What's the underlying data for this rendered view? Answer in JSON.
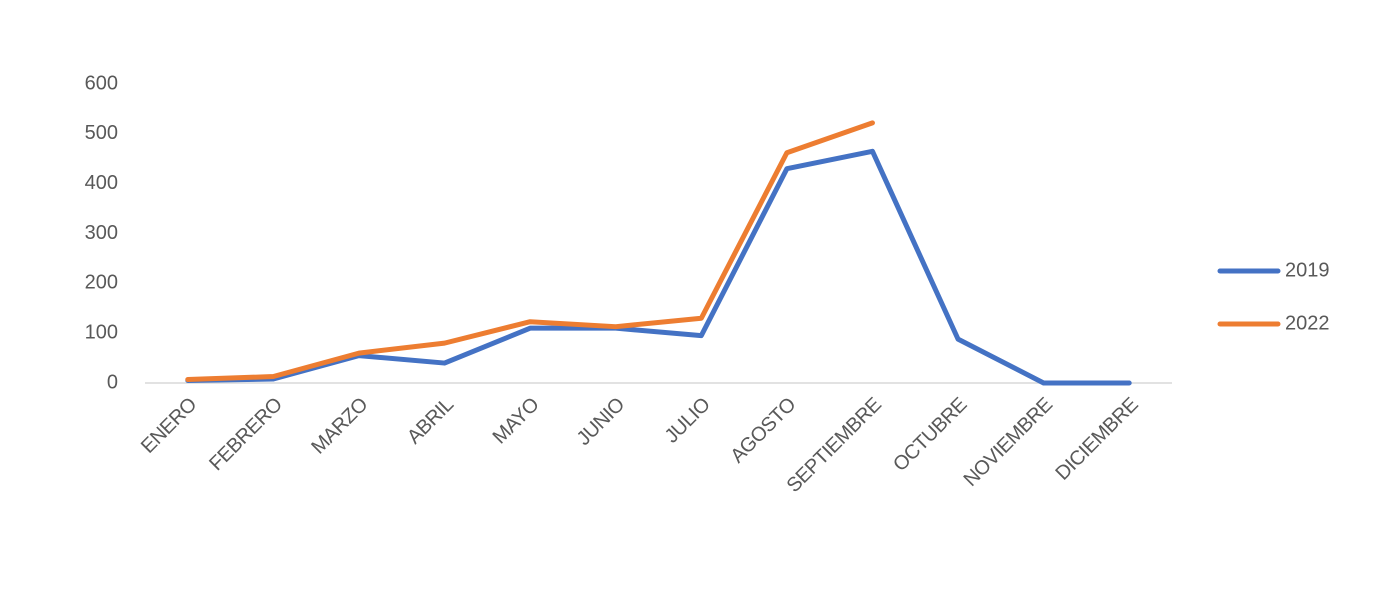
{
  "chart_data": {
    "type": "line",
    "categories": [
      "ENERO",
      "FEBRERO",
      "MARZO",
      "ABRIL",
      "MAYO",
      "JUNIO",
      "JULIO",
      "AGOSTO",
      "SEPTIEMBRE",
      "OCTUBRE",
      "NOVIEMBRE",
      "DICIEMBRE"
    ],
    "series": [
      {
        "name": "2019",
        "color": "#4472c4",
        "values": [
          5,
          8,
          55,
          40,
          110,
          110,
          95,
          430,
          465,
          88,
          0,
          0
        ]
      },
      {
        "name": "2022",
        "color": "#ed7d31",
        "values": [
          7,
          13,
          60,
          80,
          123,
          113,
          130,
          462,
          522,
          null,
          null,
          null
        ]
      }
    ],
    "ylim": [
      0,
      600
    ],
    "yticks": [
      0,
      100,
      200,
      300,
      400,
      500,
      600
    ],
    "legend": "right"
  }
}
